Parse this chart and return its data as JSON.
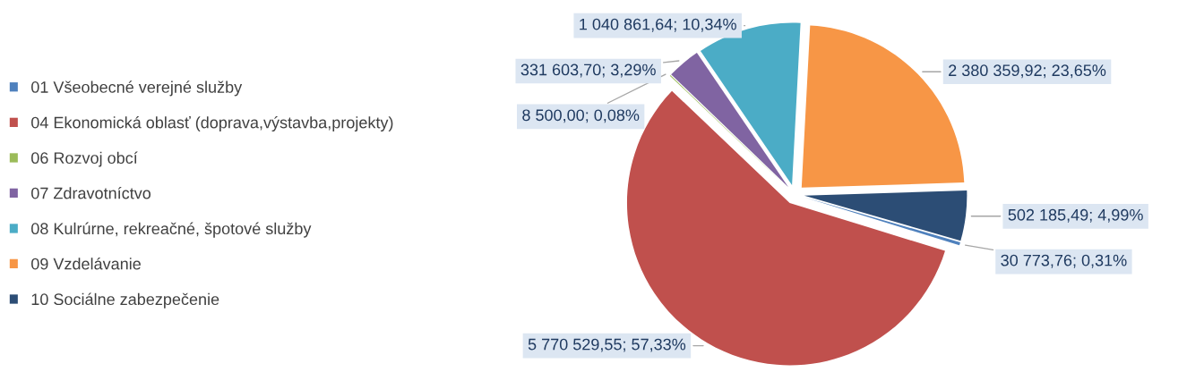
{
  "chart_data": {
    "type": "pie",
    "categories": [
      "01 Všeobecné verejné služby",
      "04 Ekonomická oblasť (doprava,výstavba,projekty)",
      "06 Rozvoj obcí",
      "07 Zdravotníctvo",
      "08 Kulrúrne, rekreačné, špotové služby",
      "09 Vzdelávanie",
      "10 Sociálne zabezpečenie"
    ],
    "values": [
      30773.76,
      5770529.55,
      8500.0,
      331603.7,
      1040861.64,
      2380359.92,
      502185.49
    ],
    "value_labels": [
      "30 773,76; 0,31%",
      "5 770 529,55; 57,33%",
      "8 500,00; 0,08%",
      "331 603,70; 3,29%",
      "1 040 861,64; 10,34%",
      "2 380 359,92; 23,65%",
      "502 185,49; 4,99%"
    ],
    "colors": [
      "#4f81bd",
      "#c0504d",
      "#9bbb59",
      "#8064a2",
      "#4bacc6",
      "#f79646",
      "#2c4d75"
    ],
    "legend": "left"
  }
}
